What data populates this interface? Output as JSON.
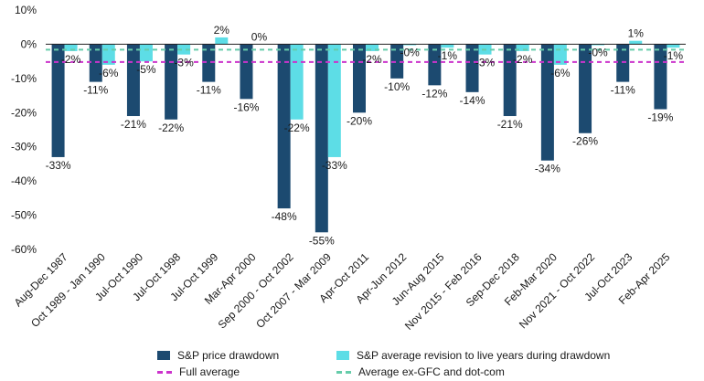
{
  "chart_data": {
    "type": "bar",
    "categories": [
      "Aug-Dec 1987",
      "Oct 1989 - Jan 1990",
      "Jul-Oct 1990",
      "Jul-Oct 1998",
      "Jul-Oct 1999",
      "Mar-Apr 2000",
      "Sep 2000 - Oct 2002",
      "Oct 2007 - Mar 2009",
      "Apr-Oct 2011",
      "Apr-Jun 2012",
      "Jun-Aug 2015",
      "Nov 2015 - Feb 2016",
      "Sep-Dec 2018",
      "Feb-Mar 2020",
      "Nov 2021 - Oct 2022",
      "Jul-Oct 2023",
      "Feb-Apr 2025"
    ],
    "series": [
      {
        "name": "S&P price drawdown",
        "color": "#1c4a70",
        "values": [
          -33,
          -11,
          -21,
          -22,
          -11,
          -16,
          -48,
          -55,
          -20,
          -10,
          -12,
          -14,
          -21,
          -34,
          -26,
          -11,
          -19
        ],
        "labels": [
          "-33%",
          "-11%",
          "-21%",
          "-22%",
          "-11%",
          "-16%",
          "-48%",
          "-55%",
          "-20%",
          "-10%",
          "-12%",
          "-14%",
          "-21%",
          "-34%",
          "-26%",
          "-11%",
          "-19%"
        ]
      },
      {
        "name": "S&P average revision to live years during drawdown",
        "color": "#5ddde6",
        "values": [
          -2,
          -6,
          -5,
          -3,
          2,
          0,
          -22,
          -33,
          -2,
          -0.3,
          -1,
          -3,
          -2,
          -6,
          -0.3,
          1,
          -1
        ],
        "labels": [
          "-2%",
          "-6%",
          "-5%",
          "-3%",
          "2%",
          "0%",
          "-22%",
          "-33%",
          "-2%",
          "-0%",
          "-1%",
          "-3%",
          "-2%",
          "-6%",
          "-0%",
          "1%",
          "-1%"
        ]
      }
    ],
    "reference_lines": [
      {
        "name": "Full average",
        "value": -5.2,
        "color": "#cc33cc"
      },
      {
        "name": "Average ex-GFC and dot-com",
        "value": -1.6,
        "color": "#66ccaa"
      }
    ],
    "ylim": [
      -60,
      10
    ],
    "yticks": [
      10,
      0,
      -10,
      -20,
      -30,
      -40,
      -50,
      -60
    ],
    "ytick_labels": [
      "10%",
      "0%",
      "-10%",
      "-20%",
      "-30%",
      "-40%",
      "-50%",
      "-60%"
    ],
    "title": "",
    "xlabel": "",
    "ylabel": "",
    "grid": false,
    "legend_position": "bottom"
  }
}
